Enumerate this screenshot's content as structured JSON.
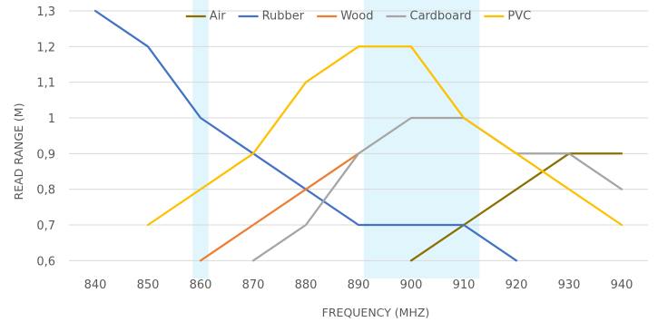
{
  "chart_data": {
    "type": "line",
    "x": [
      840,
      850,
      860,
      870,
      880,
      890,
      900,
      910,
      920,
      930,
      940
    ],
    "xlabel": "FREQUENCY (MHZ)",
    "ylabel": "READ RANGE (M)",
    "xlim": [
      835,
      945
    ],
    "ylim": [
      0.55,
      1.3
    ],
    "x_tick_labels": [
      "840",
      "850",
      "860",
      "870",
      "880",
      "890",
      "900",
      "910",
      "920",
      "930",
      "940"
    ],
    "y_ticks": [
      0.6,
      0.7,
      0.8,
      0.9,
      1.0,
      1.1,
      1.2,
      1.3
    ],
    "y_tick_labels": [
      "0,6",
      "0,7",
      "0,8",
      "0,9",
      "1",
      "1,1",
      "1,2",
      "1,3"
    ],
    "grid": "horizontal",
    "legend_position": "top",
    "highlight_bands": [
      {
        "x_start": 858.5,
        "x_end": 861.5,
        "color": "#e1f5fd"
      },
      {
        "x_start": 891,
        "x_end": 913,
        "color": "#e1f5fd"
      }
    ],
    "series": [
      {
        "name": "Air",
        "color": "#8b7000",
        "points": [
          [
            900,
            0.6
          ],
          [
            910,
            0.7
          ],
          [
            920,
            0.8
          ],
          [
            930,
            0.9
          ],
          [
            940,
            0.9
          ]
        ]
      },
      {
        "name": "Rubber",
        "color": "#4472c4",
        "points": [
          [
            840,
            1.3
          ],
          [
            850,
            1.2
          ],
          [
            860,
            1.0
          ],
          [
            870,
            0.9
          ],
          [
            880,
            0.8
          ],
          [
            890,
            0.7
          ],
          [
            900,
            0.7
          ],
          [
            910,
            0.7
          ],
          [
            920,
            0.6
          ]
        ]
      },
      {
        "name": "Wood",
        "color": "#ed7d31",
        "points": [
          [
            860,
            0.6
          ],
          [
            870,
            0.7
          ],
          [
            880,
            0.8
          ],
          [
            890,
            0.9
          ]
        ]
      },
      {
        "name": "Cardboard",
        "color": "#a5a5a5",
        "points": [
          [
            870,
            0.6
          ],
          [
            880,
            0.7
          ],
          [
            890,
            0.9
          ],
          [
            900,
            1.0
          ],
          [
            910,
            1.0
          ],
          [
            920,
            0.9
          ],
          [
            930,
            0.9
          ],
          [
            940,
            0.8
          ]
        ]
      },
      {
        "name": "PVC",
        "color": "#ffc000",
        "points": [
          [
            850,
            0.7
          ],
          [
            860,
            0.8
          ],
          [
            870,
            0.9
          ],
          [
            880,
            1.1
          ],
          [
            890,
            1.2
          ],
          [
            900,
            1.2
          ],
          [
            910,
            1.0
          ],
          [
            920,
            0.9
          ],
          [
            930,
            0.8
          ],
          [
            940,
            0.7
          ]
        ]
      }
    ]
  }
}
